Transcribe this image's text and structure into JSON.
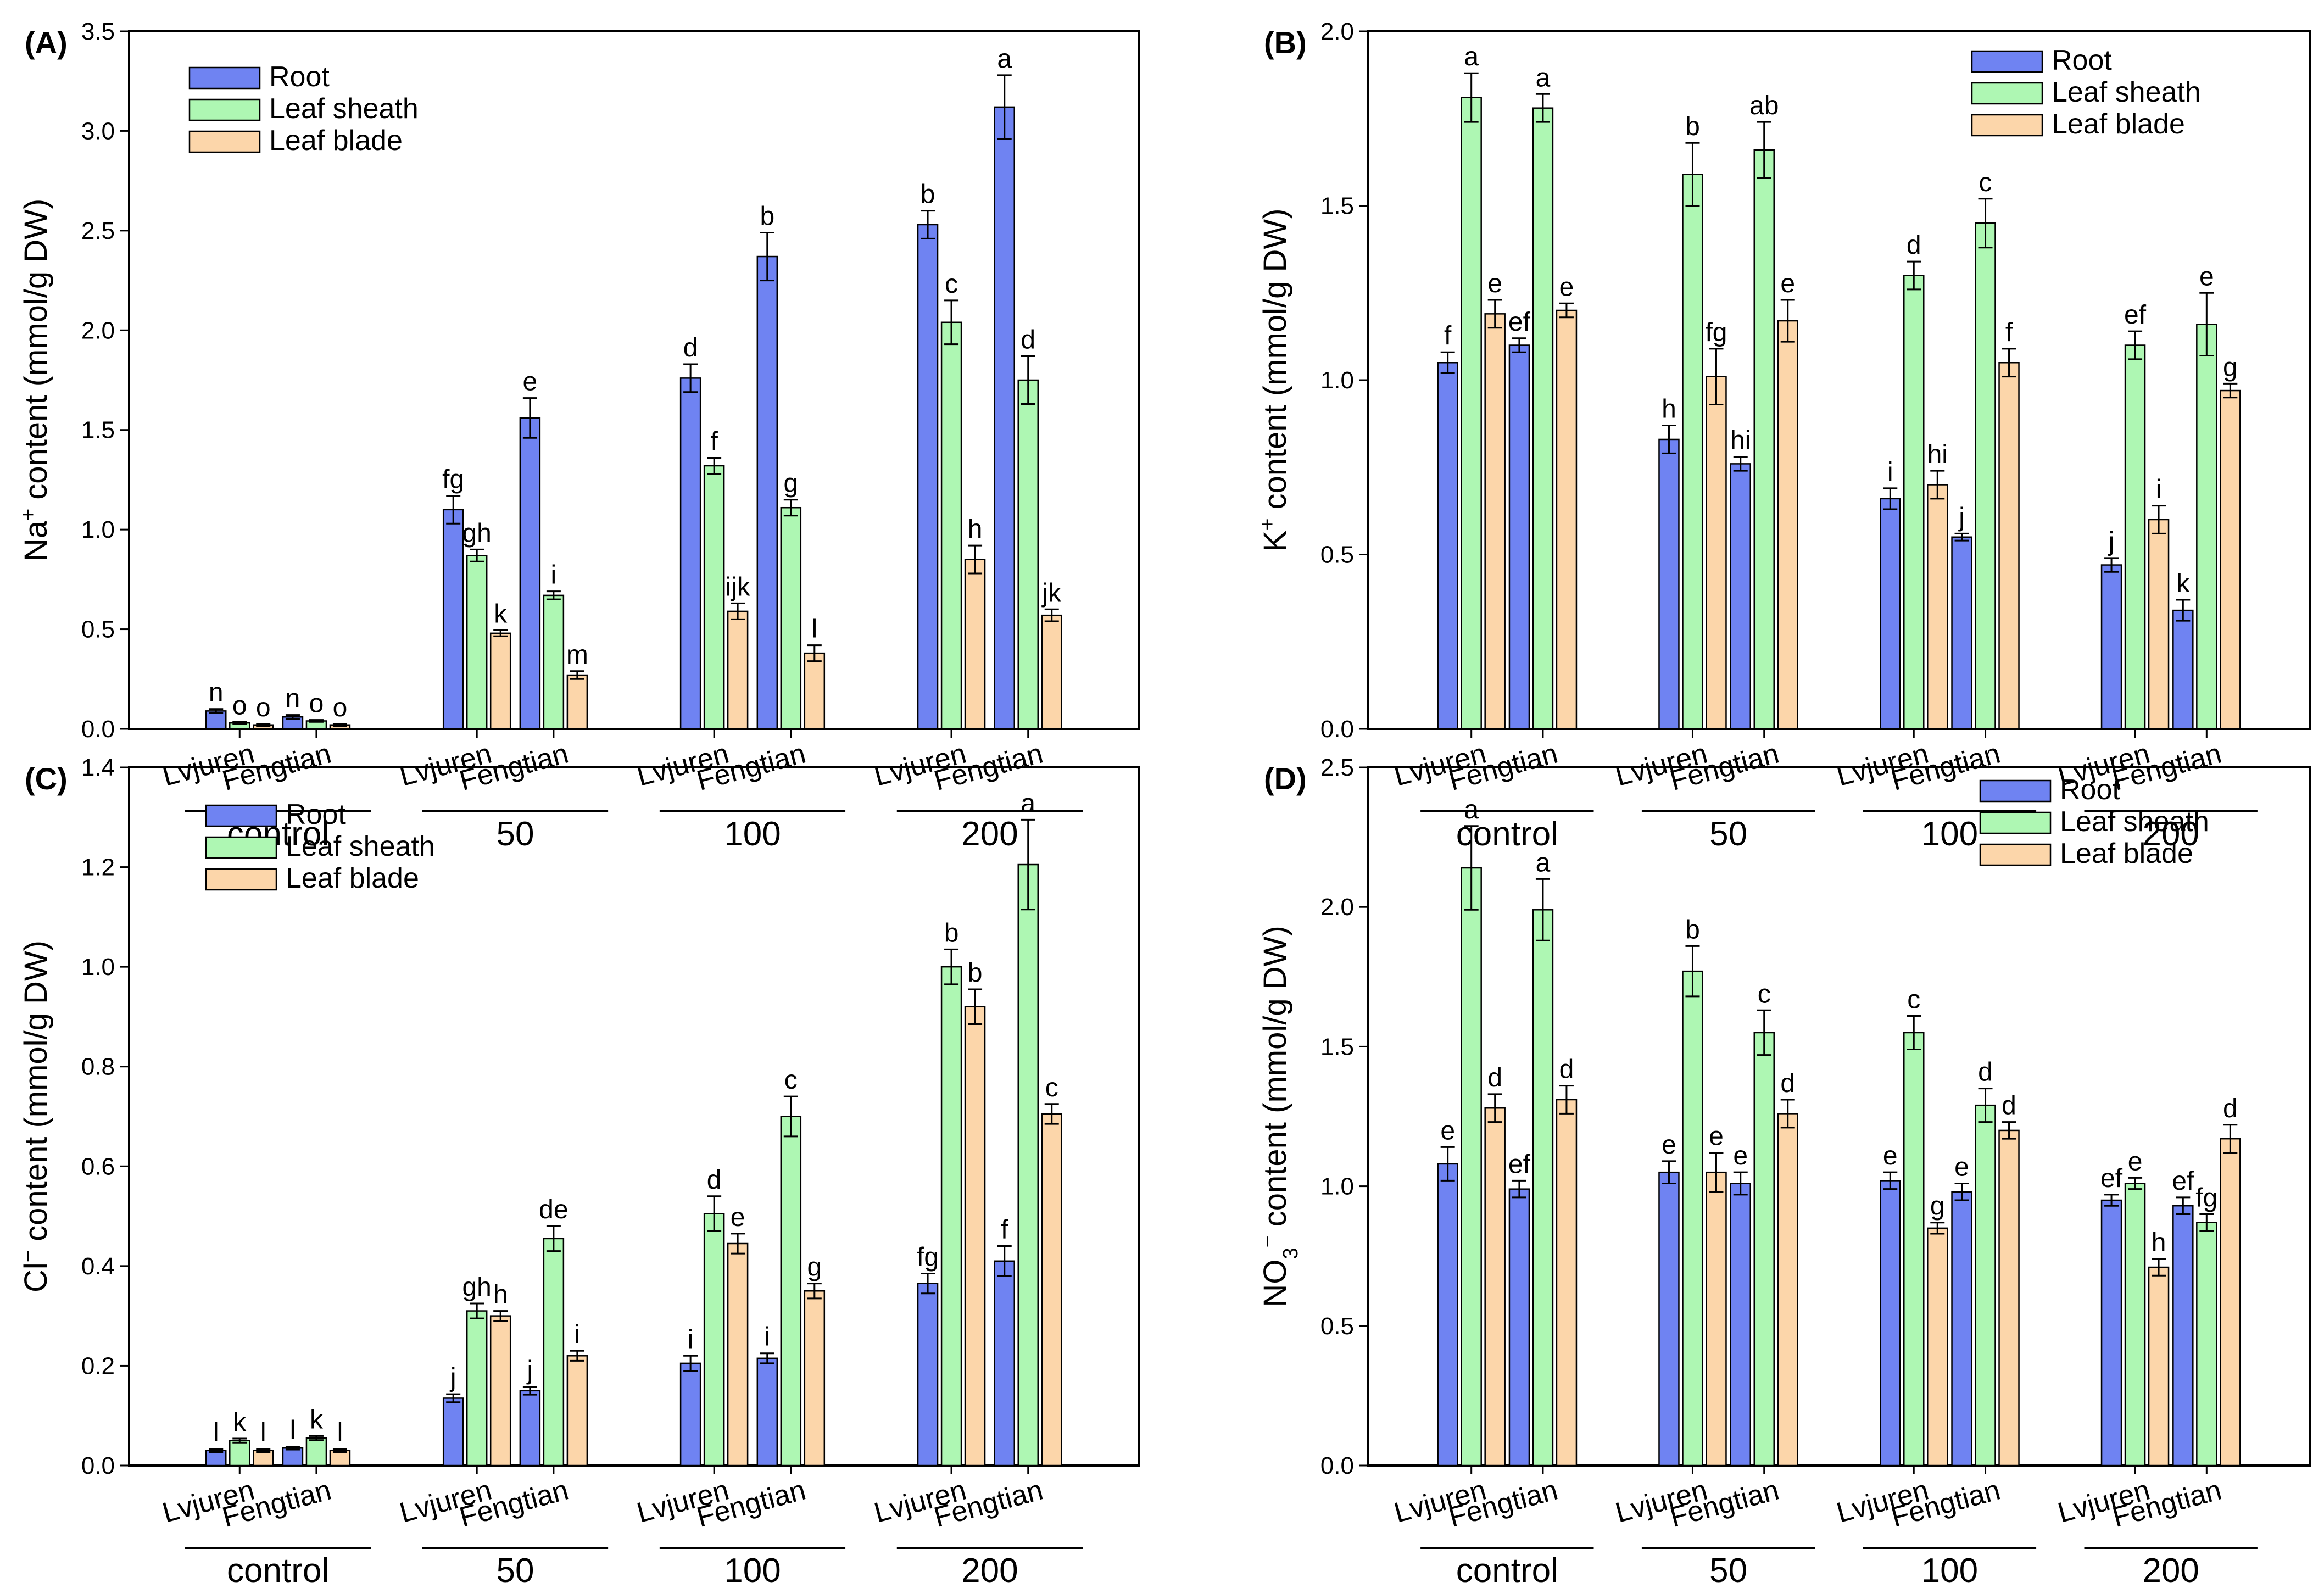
{
  "colors": {
    "Root": "#6f83f2",
    "Leaf sheath": "#aef7b3",
    "Leaf blade": "#fcd6aa",
    "stroke": "#000000"
  },
  "chart_data": [
    {
      "panel": "(A)",
      "type": "bar",
      "ylabel_pre": "Na",
      "ylabel_sup": "+",
      "ylabel_post": " content (mmol/g DW)",
      "ylim": [
        0,
        3.5
      ],
      "yticks": [
        "0.0",
        "0.5",
        "1.0",
        "1.5",
        "2.0",
        "2.5",
        "3.0",
        "3.5"
      ],
      "legend": [
        "Root",
        "Leaf sheath",
        "Leaf blade"
      ],
      "legend_position": "top-left",
      "groups": [
        "control",
        "50",
        "100",
        "200"
      ],
      "cultivars": [
        "Lvjuren",
        "Fengtian"
      ],
      "series": [
        {
          "name": "Root",
          "values": [
            0.09,
            0.06,
            1.1,
            1.56,
            1.76,
            2.37,
            2.53,
            3.12
          ],
          "errors": [
            0.01,
            0.01,
            0.07,
            0.1,
            0.07,
            0.12,
            0.07,
            0.16
          ],
          "letters": [
            "n",
            "n",
            "fg",
            "e",
            "d",
            "b",
            "b",
            "a"
          ]
        },
        {
          "name": "Leaf sheath",
          "values": [
            0.03,
            0.04,
            0.87,
            0.67,
            1.32,
            1.11,
            2.04,
            1.75
          ],
          "errors": [
            0.005,
            0.005,
            0.03,
            0.02,
            0.04,
            0.04,
            0.11,
            0.12
          ],
          "letters": [
            "o",
            "o",
            "gh",
            "i",
            "f",
            "g",
            "c",
            "d"
          ]
        },
        {
          "name": "Leaf blade",
          "values": [
            0.02,
            0.02,
            0.48,
            0.27,
            0.59,
            0.38,
            0.85,
            0.57
          ],
          "errors": [
            0.005,
            0.005,
            0.015,
            0.02,
            0.04,
            0.04,
            0.07,
            0.03
          ],
          "letters": [
            "o",
            "o",
            "k",
            "m",
            "ijk",
            "l",
            "h",
            "jk"
          ]
        }
      ]
    },
    {
      "panel": "(B)",
      "type": "bar",
      "ylabel_pre": "K",
      "ylabel_sup": "+",
      "ylabel_post": " content (mmol/g DW)",
      "ylim": [
        0,
        2.0
      ],
      "yticks": [
        "0.0",
        "0.5",
        "1.0",
        "1.5",
        "2.0"
      ],
      "legend": [
        "Root",
        "Leaf sheath",
        "Leaf blade"
      ],
      "legend_position": "top-right",
      "groups": [
        "control",
        "50",
        "100",
        "200"
      ],
      "cultivars": [
        "Lvjuren",
        "Fengtian"
      ],
      "series": [
        {
          "name": "Root",
          "values": [
            1.05,
            1.1,
            0.83,
            0.76,
            0.66,
            0.55,
            0.47,
            0.34
          ],
          "errors": [
            0.03,
            0.02,
            0.04,
            0.02,
            0.03,
            0.01,
            0.02,
            0.03
          ],
          "letters": [
            "f",
            "ef",
            "h",
            "hi",
            "i",
            "j",
            "j",
            "k"
          ]
        },
        {
          "name": "Leaf sheath",
          "values": [
            1.81,
            1.78,
            1.59,
            1.66,
            1.3,
            1.45,
            1.1,
            1.16
          ],
          "errors": [
            0.07,
            0.04,
            0.09,
            0.08,
            0.04,
            0.07,
            0.04,
            0.09
          ],
          "letters": [
            "a",
            "a",
            "b",
            "ab",
            "d",
            "c",
            "ef",
            "e"
          ]
        },
        {
          "name": "Leaf blade",
          "values": [
            1.19,
            1.2,
            1.01,
            1.17,
            0.7,
            1.05,
            0.6,
            0.97
          ],
          "errors": [
            0.04,
            0.02,
            0.08,
            0.06,
            0.04,
            0.04,
            0.04,
            0.02
          ],
          "letters": [
            "e",
            "e",
            "fg",
            "e",
            "hi",
            "f",
            "i",
            "g"
          ]
        }
      ]
    },
    {
      "panel": "(C)",
      "type": "bar",
      "ylabel_pre": "Cl",
      "ylabel_sup": "−",
      "ylabel_post": " content (mmol/g DW)",
      "ylim": [
        0,
        1.4
      ],
      "yticks": [
        "0.0",
        "0.2",
        "0.4",
        "0.6",
        "0.8",
        "1.0",
        "1.2",
        "1.4"
      ],
      "legend": [
        "Root",
        "Leaf sheath",
        "Leaf blade"
      ],
      "legend_position": "top-left",
      "groups": [
        "control",
        "50",
        "100",
        "200"
      ],
      "cultivars": [
        "Lvjuren",
        "Fengtian"
      ],
      "series": [
        {
          "name": "Root",
          "values": [
            0.03,
            0.035,
            0.135,
            0.15,
            0.205,
            0.215,
            0.365,
            0.41
          ],
          "errors": [
            0.003,
            0.003,
            0.008,
            0.008,
            0.015,
            0.01,
            0.02,
            0.03
          ],
          "letters": [
            "l",
            "l",
            "j",
            "j",
            "i",
            "i",
            "fg",
            "f"
          ]
        },
        {
          "name": "Leaf sheath",
          "values": [
            0.05,
            0.055,
            0.31,
            0.455,
            0.505,
            0.7,
            1.0,
            1.205
          ],
          "errors": [
            0.004,
            0.004,
            0.015,
            0.025,
            0.035,
            0.04,
            0.035,
            0.09
          ],
          "letters": [
            "k",
            "k",
            "gh",
            "de",
            "d",
            "c",
            "b",
            "a"
          ]
        },
        {
          "name": "Leaf blade",
          "values": [
            0.03,
            0.03,
            0.3,
            0.22,
            0.445,
            0.35,
            0.92,
            0.705
          ],
          "errors": [
            0.003,
            0.003,
            0.01,
            0.01,
            0.02,
            0.015,
            0.035,
            0.02
          ],
          "letters": [
            "l",
            "l",
            "h",
            "i",
            "e",
            "g",
            "b",
            "c"
          ]
        }
      ]
    },
    {
      "panel": "(D)",
      "type": "bar",
      "ylabel_pre": "NO",
      "ylabel_sub": "3",
      "ylabel_sup": "−",
      "ylabel_post": " content (mmol/g DW)",
      "ylim": [
        0,
        2.5
      ],
      "yticks": [
        "0.0",
        "0.5",
        "1.0",
        "1.5",
        "2.0",
        "2.5"
      ],
      "legend": [
        "Root",
        "Leaf sheath",
        "Leaf blade"
      ],
      "legend_position": "top-right",
      "groups": [
        "control",
        "50",
        "100",
        "200"
      ],
      "cultivars": [
        "Lvjuren",
        "Fengtian"
      ],
      "series": [
        {
          "name": "Root",
          "values": [
            1.08,
            0.99,
            1.05,
            1.01,
            1.02,
            0.98,
            0.95,
            0.93
          ],
          "errors": [
            0.06,
            0.03,
            0.04,
            0.04,
            0.03,
            0.03,
            0.02,
            0.03
          ],
          "letters": [
            "e",
            "ef",
            "e",
            "e",
            "e",
            "e",
            "ef",
            "ef"
          ]
        },
        {
          "name": "Leaf sheath",
          "values": [
            2.14,
            1.99,
            1.77,
            1.55,
            1.55,
            1.29,
            1.01,
            0.87
          ],
          "errors": [
            0.15,
            0.11,
            0.09,
            0.08,
            0.06,
            0.06,
            0.02,
            0.03
          ],
          "letters": [
            "a",
            "a",
            "b",
            "c",
            "c",
            "d",
            "e",
            "fg"
          ]
        },
        {
          "name": "Leaf blade",
          "values": [
            1.28,
            1.31,
            1.05,
            1.26,
            0.85,
            1.2,
            0.71,
            1.17
          ],
          "errors": [
            0.05,
            0.05,
            0.07,
            0.05,
            0.02,
            0.03,
            0.03,
            0.05
          ],
          "letters": [
            "d",
            "d",
            "e",
            "d",
            "g",
            "d",
            "h",
            "d"
          ]
        }
      ]
    }
  ]
}
